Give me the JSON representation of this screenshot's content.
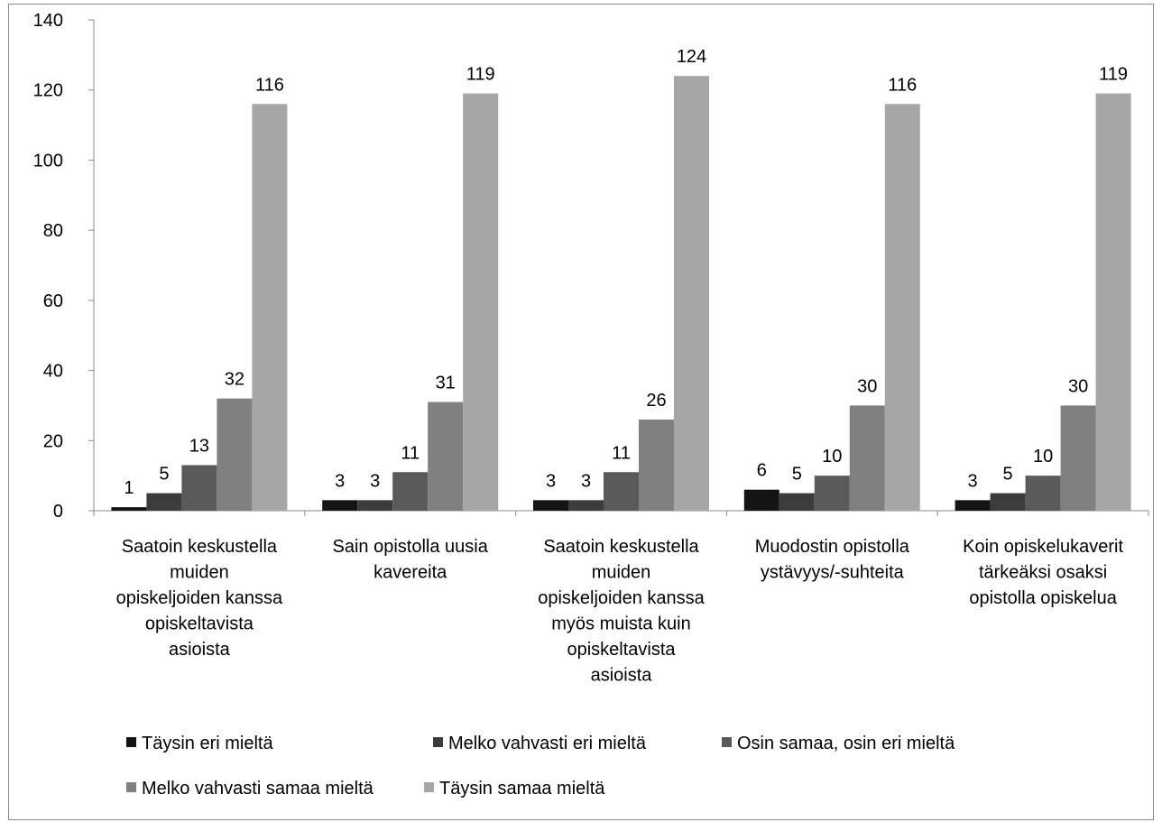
{
  "chart_data": {
    "type": "bar",
    "ylim": [
      0,
      140
    ],
    "yticks": [
      0,
      20,
      40,
      60,
      80,
      100,
      120,
      140
    ],
    "grid": false,
    "legend_position": "bottom",
    "categories": [
      [
        "Saatoin keskustella",
        "muiden",
        "opiskeljoiden kanssa",
        "opiskeltavista",
        "asioista"
      ],
      [
        "Sain opistolla uusia",
        "kavereita"
      ],
      [
        "Saatoin keskustella",
        "muiden",
        "opiskeljoiden kanssa",
        "myös muista kuin",
        "opiskeltavista",
        "asioista"
      ],
      [
        "Muodostin opistolla",
        "ystävyys/-suhteita"
      ],
      [
        "Koin opiskelukaverit",
        "tärkeäksi osaksi",
        "opistolla opiskelua"
      ]
    ],
    "series": [
      {
        "name": "Täysin eri mieltä",
        "color": "#141414",
        "values": [
          1,
          3,
          3,
          6,
          3
        ]
      },
      {
        "name": "Melko vahvasti eri mieltä",
        "color": "#3c3c3c",
        "values": [
          5,
          3,
          3,
          5,
          5
        ]
      },
      {
        "name": "Osin samaa, osin eri mieltä",
        "color": "#5a5a5a",
        "values": [
          13,
          11,
          11,
          10,
          10
        ]
      },
      {
        "name": "Melko vahvasti samaa mieltä",
        "color": "#808080",
        "values": [
          32,
          31,
          26,
          30,
          30
        ]
      },
      {
        "name": "Täysin samaa mieltä",
        "color": "#a6a6a6",
        "values": [
          116,
          119,
          124,
          116,
          119
        ]
      }
    ]
  }
}
